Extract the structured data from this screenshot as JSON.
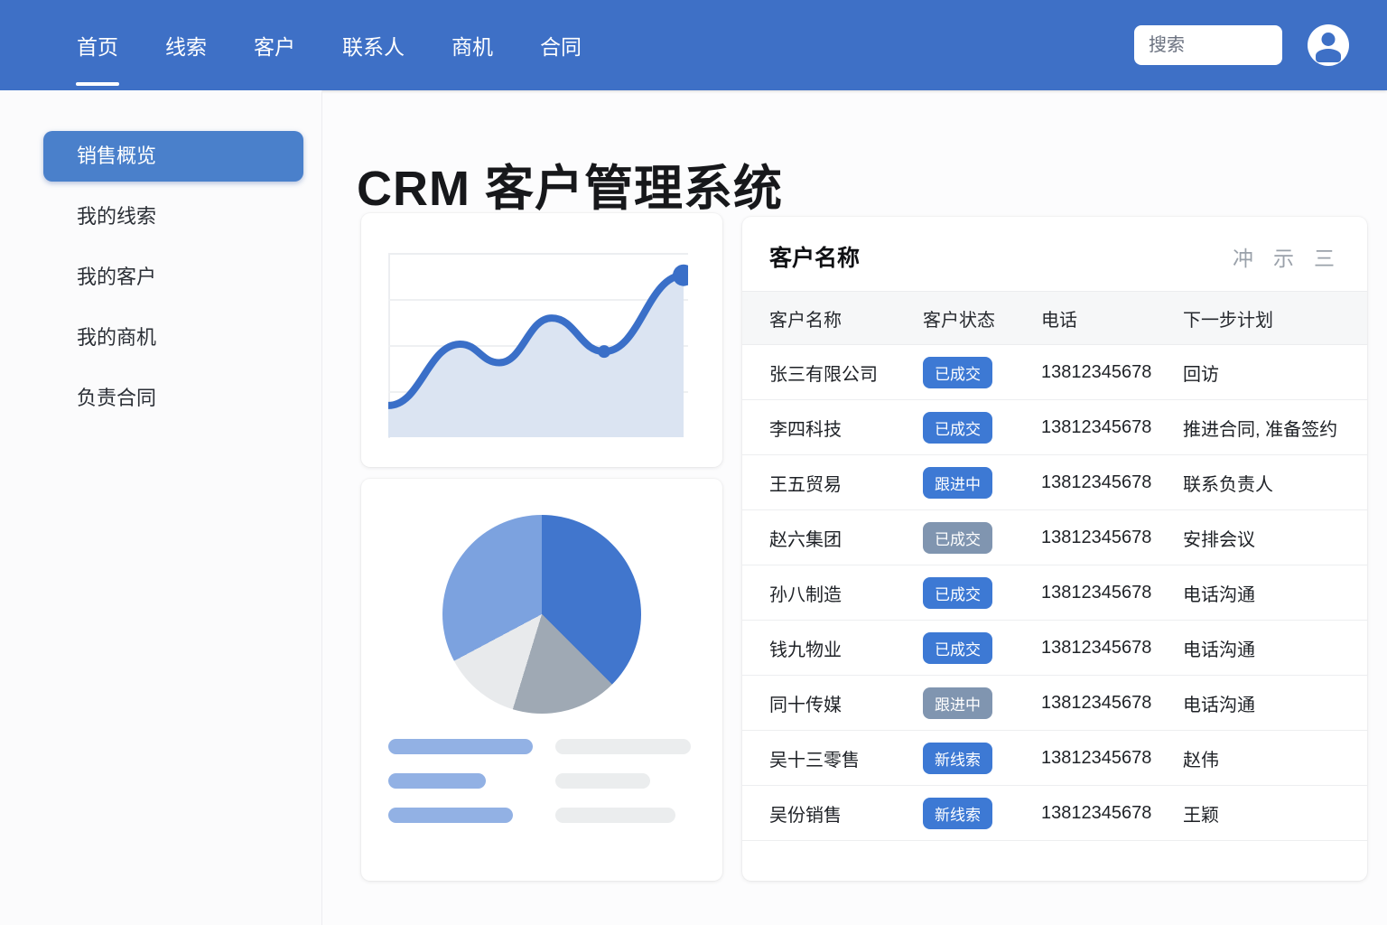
{
  "colors": {
    "navbar_blue": "#3e70c6",
    "sidebar_active_blue": "#4a80cb",
    "badge_blue": "#3d79d4",
    "badge_gray": "#8095b0",
    "chart_line_blue": "#3a6fc8",
    "chart_fill_blue": "#d9e3f1",
    "legend_bar_blue": "#92b1e4",
    "legend_bar_gray": "#ebedee"
  },
  "navbar": {
    "items": [
      {
        "key": "home",
        "label": "首页",
        "active": true
      },
      {
        "key": "leads",
        "label": "线索",
        "active": false
      },
      {
        "key": "customers",
        "label": "客户",
        "active": false
      },
      {
        "key": "contacts",
        "label": "联系人",
        "active": false
      },
      {
        "key": "opportunities",
        "label": "商机",
        "active": false
      },
      {
        "key": "contracts",
        "label": "合同",
        "active": false
      }
    ],
    "search": {
      "placeholder": "搜索",
      "value": ""
    }
  },
  "sidebar": {
    "items": [
      {
        "key": "overview",
        "label": "销售概览",
        "active": true
      },
      {
        "key": "my-leads",
        "label": "我的线索",
        "active": false
      },
      {
        "key": "my-customers",
        "label": "我的客户",
        "active": false
      },
      {
        "key": "my-opportunities",
        "label": "我的商机",
        "active": false
      },
      {
        "key": "my-contracts",
        "label": "负责合同",
        "active": false
      }
    ]
  },
  "main": {
    "title": "CRM 客户管理系统"
  },
  "customers_panel": {
    "title": "客户名称",
    "toolbar_icons": [
      {
        "name": "filter-icon",
        "glyph": "冲"
      },
      {
        "name": "sort-icon",
        "glyph": "示"
      },
      {
        "name": "menu-icon",
        "glyph": "三"
      }
    ],
    "columns": [
      "客户名称",
      "客户状态",
      "电话",
      "下一步计划"
    ],
    "rows": [
      {
        "name": "张三有限公司",
        "status": "已成交",
        "status_style": "blue",
        "phone": "13812345678",
        "next": "回访"
      },
      {
        "name": "李四科技",
        "status": "已成交",
        "status_style": "blue",
        "phone": "13812345678",
        "next": "推进合同, 准备签约"
      },
      {
        "name": "王五贸易",
        "status": "跟进中",
        "status_style": "blue",
        "phone": "13812345678",
        "next": "联系负责人"
      },
      {
        "name": "赵六集团",
        "status": "已成交",
        "status_style": "gray",
        "phone": "13812345678",
        "next": "安排会议"
      },
      {
        "name": "孙八制造",
        "status": "已成交",
        "status_style": "blue",
        "phone": "13812345678",
        "next": "电话沟通"
      },
      {
        "name": "钱九物业",
        "status": "已成交",
        "status_style": "blue",
        "phone": "13812345678",
        "next": "电话沟通"
      },
      {
        "name": "同十传媒",
        "status": "跟进中",
        "status_style": "gray",
        "phone": "13812345678",
        "next": "电话沟通"
      },
      {
        "name": "吴十三零售",
        "status": "新线索",
        "status_style": "blue",
        "phone": "13812345678",
        "next": "赵伟"
      },
      {
        "name": "吴份销售",
        "status": "新线索",
        "status_style": "blue",
        "phone": "13812345678",
        "next": "王颖"
      }
    ]
  },
  "chart_data": [
    {
      "type": "area",
      "title": "",
      "xlabel": "",
      "ylabel": "",
      "note": "decorative trend chart, no axis tick labels visible",
      "points_norm": [
        [
          0,
          0.82
        ],
        [
          0.24,
          0.49
        ],
        [
          0.37,
          0.59
        ],
        [
          0.545,
          0.35
        ],
        [
          0.72,
          0.53
        ],
        [
          0.985,
          0.12
        ]
      ],
      "marker_indices": [
        4,
        5
      ],
      "line_color": "#3a6fc8",
      "fill_color": "#d9e3f1",
      "grid": true,
      "legend_position": "none"
    },
    {
      "type": "pie",
      "title": "",
      "note": "no slice labels visible; angles estimated from pixels",
      "slices": [
        {
          "label": "",
          "value_deg": 135,
          "percent": 37.5,
          "color": "#4176cd"
        },
        {
          "label": "",
          "value_deg": 62,
          "percent": 17.2,
          "color": "#9fa9b4"
        },
        {
          "label": "",
          "value_deg": 45,
          "percent": 12.5,
          "color": "#e8eaec"
        },
        {
          "label": "",
          "value_deg": 118,
          "percent": 32.8,
          "color": "#7ca2df"
        }
      ],
      "legend_position": "none"
    }
  ],
  "legend_skeleton": {
    "blue_bar_widths": [
      160,
      108,
      138
    ],
    "gray_bar_widths": [
      150,
      105,
      133
    ]
  }
}
